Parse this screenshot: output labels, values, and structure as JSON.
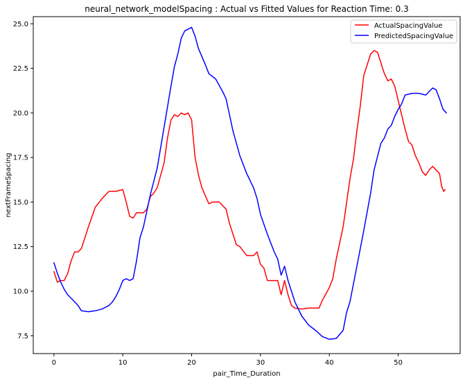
{
  "chart_data": {
    "type": "line",
    "title": "neural_network_modelSpacing : Actual vs Fitted Values for Reaction Time: 0.3",
    "xlabel": "pair_Time_Duration",
    "ylabel": "nextFrameSpacing",
    "xlim": [
      -3,
      59
    ],
    "ylim": [
      6.5,
      25.4
    ],
    "xticks": [
      0,
      10,
      20,
      30,
      40,
      50
    ],
    "xtick_labels": [
      "0",
      "10",
      "20",
      "30",
      "40",
      "50"
    ],
    "yticks": [
      7.5,
      10.0,
      12.5,
      15.0,
      17.5,
      20.0,
      22.5,
      25.0
    ],
    "ytick_labels": [
      "7.5",
      "10.0",
      "12.5",
      "15.0",
      "17.5",
      "20.0",
      "22.5",
      "25.0"
    ],
    "grid": false,
    "legend_position": "top-right",
    "series": [
      {
        "name": "ActualSpacingValue",
        "color": "#ff0000",
        "points": [
          [
            0,
            11.1
          ],
          [
            0.5,
            10.5
          ],
          [
            1.0,
            10.6
          ],
          [
            1.5,
            10.6
          ],
          [
            2.0,
            11.0
          ],
          [
            2.5,
            11.7
          ],
          [
            3.0,
            12.2
          ],
          [
            3.5,
            12.2
          ],
          [
            4.0,
            12.4
          ],
          [
            5.0,
            13.6
          ],
          [
            6.0,
            14.7
          ],
          [
            7.0,
            15.2
          ],
          [
            8.0,
            15.6
          ],
          [
            9.0,
            15.6
          ],
          [
            10.0,
            15.7
          ],
          [
            10.5,
            15.0
          ],
          [
            11.0,
            14.2
          ],
          [
            11.5,
            14.1
          ],
          [
            12.0,
            14.4
          ],
          [
            13.0,
            14.4
          ],
          [
            13.5,
            14.6
          ],
          [
            14.0,
            15.3
          ],
          [
            14.5,
            15.5
          ],
          [
            15.0,
            15.8
          ],
          [
            16.0,
            17.2
          ],
          [
            16.5,
            18.6
          ],
          [
            17.0,
            19.6
          ],
          [
            17.5,
            19.9
          ],
          [
            18.0,
            19.8
          ],
          [
            18.5,
            20.0
          ],
          [
            19.0,
            19.9
          ],
          [
            19.5,
            20.0
          ],
          [
            20.0,
            19.6
          ],
          [
            20.5,
            17.5
          ],
          [
            21.0,
            16.5
          ],
          [
            21.5,
            15.8
          ],
          [
            22.5,
            14.9
          ],
          [
            23.0,
            15.0
          ],
          [
            24.0,
            15.0
          ],
          [
            25.0,
            14.6
          ],
          [
            25.5,
            13.8
          ],
          [
            26.5,
            12.6
          ],
          [
            27.0,
            12.5
          ],
          [
            28.0,
            12.0
          ],
          [
            29.0,
            12.0
          ],
          [
            29.5,
            12.2
          ],
          [
            30.0,
            11.5
          ],
          [
            30.5,
            11.3
          ],
          [
            31.0,
            10.6
          ],
          [
            32.0,
            10.6
          ],
          [
            32.5,
            10.6
          ],
          [
            33.0,
            9.8
          ],
          [
            33.5,
            10.6
          ],
          [
            34.0,
            9.8
          ],
          [
            34.5,
            9.2
          ],
          [
            35.0,
            9.05
          ],
          [
            36.0,
            9.0
          ],
          [
            37.0,
            9.05
          ],
          [
            38.0,
            9.05
          ],
          [
            38.5,
            9.05
          ],
          [
            39.0,
            9.5
          ],
          [
            40.0,
            10.2
          ],
          [
            40.5,
            10.7
          ],
          [
            41.0,
            11.8
          ],
          [
            42.0,
            13.6
          ],
          [
            43.0,
            16.3
          ],
          [
            43.5,
            17.4
          ],
          [
            44.0,
            19.0
          ],
          [
            44.5,
            20.4
          ],
          [
            45.0,
            22.1
          ],
          [
            46.0,
            23.3
          ],
          [
            46.5,
            23.5
          ],
          [
            47.0,
            23.4
          ],
          [
            47.5,
            22.8
          ],
          [
            48.0,
            22.2
          ],
          [
            48.5,
            21.8
          ],
          [
            49.0,
            21.9
          ],
          [
            49.5,
            21.5
          ],
          [
            50.0,
            20.7
          ],
          [
            50.5,
            19.9
          ],
          [
            51.0,
            19.1
          ],
          [
            51.5,
            18.4
          ],
          [
            52.0,
            18.2
          ],
          [
            52.5,
            17.6
          ],
          [
            53.0,
            17.2
          ],
          [
            53.5,
            16.7
          ],
          [
            54.0,
            16.5
          ],
          [
            54.5,
            16.8
          ],
          [
            55.0,
            17.0
          ],
          [
            55.5,
            16.8
          ],
          [
            56.0,
            16.6
          ],
          [
            56.3,
            15.9
          ],
          [
            56.6,
            15.6
          ],
          [
            56.8,
            15.7
          ]
        ]
      },
      {
        "name": "PredictedSpacingValue",
        "color": "#0000ff",
        "points": [
          [
            0,
            11.6
          ],
          [
            0.5,
            11.0
          ],
          [
            1.0,
            10.5
          ],
          [
            1.5,
            10.1
          ],
          [
            2.0,
            9.8
          ],
          [
            3.0,
            9.4
          ],
          [
            3.5,
            9.2
          ],
          [
            4.0,
            8.9
          ],
          [
            5.0,
            8.85
          ],
          [
            6.0,
            8.9
          ],
          [
            7.0,
            9.0
          ],
          [
            8.0,
            9.2
          ],
          [
            8.5,
            9.4
          ],
          [
            9.0,
            9.7
          ],
          [
            9.5,
            10.1
          ],
          [
            10.0,
            10.6
          ],
          [
            10.5,
            10.7
          ],
          [
            11.0,
            10.6
          ],
          [
            11.5,
            10.7
          ],
          [
            12.0,
            11.7
          ],
          [
            12.5,
            13.0
          ],
          [
            13.0,
            13.6
          ],
          [
            14.0,
            15.4
          ],
          [
            15.0,
            16.9
          ],
          [
            16.0,
            19.2
          ],
          [
            17.0,
            21.5
          ],
          [
            17.5,
            22.6
          ],
          [
            18.0,
            23.3
          ],
          [
            18.5,
            24.2
          ],
          [
            19.0,
            24.6
          ],
          [
            20.0,
            24.8
          ],
          [
            20.5,
            24.3
          ],
          [
            21.0,
            23.6
          ],
          [
            22.0,
            22.7
          ],
          [
            22.5,
            22.2
          ],
          [
            23.5,
            21.9
          ],
          [
            24.5,
            21.2
          ],
          [
            25.0,
            20.8
          ],
          [
            26.0,
            19.0
          ],
          [
            27.0,
            17.6
          ],
          [
            28.0,
            16.6
          ],
          [
            29.0,
            15.8
          ],
          [
            29.5,
            15.2
          ],
          [
            30.0,
            14.3
          ],
          [
            31.0,
            13.2
          ],
          [
            32.0,
            12.2
          ],
          [
            32.5,
            11.8
          ],
          [
            33.0,
            10.9
          ],
          [
            33.5,
            11.4
          ],
          [
            34.0,
            10.6
          ],
          [
            35.0,
            9.4
          ],
          [
            36.0,
            8.6
          ],
          [
            37.0,
            8.1
          ],
          [
            38.0,
            7.8
          ],
          [
            39.0,
            7.45
          ],
          [
            40.0,
            7.3
          ],
          [
            41.0,
            7.35
          ],
          [
            42.0,
            7.8
          ],
          [
            42.5,
            8.8
          ],
          [
            43.0,
            9.4
          ],
          [
            44.0,
            11.4
          ],
          [
            45.0,
            13.4
          ],
          [
            46.0,
            15.5
          ],
          [
            46.5,
            16.8
          ],
          [
            47.5,
            18.3
          ],
          [
            48.0,
            18.6
          ],
          [
            48.5,
            19.1
          ],
          [
            49.0,
            19.3
          ],
          [
            49.5,
            19.8
          ],
          [
            50.0,
            20.2
          ],
          [
            50.5,
            20.5
          ],
          [
            51.0,
            21.0
          ],
          [
            52.0,
            21.1
          ],
          [
            53.0,
            21.1
          ],
          [
            54.0,
            21.0
          ],
          [
            54.5,
            21.2
          ],
          [
            55.0,
            21.4
          ],
          [
            55.5,
            21.3
          ],
          [
            56.0,
            20.8
          ],
          [
            56.5,
            20.2
          ],
          [
            57.0,
            20.0
          ]
        ]
      }
    ]
  }
}
